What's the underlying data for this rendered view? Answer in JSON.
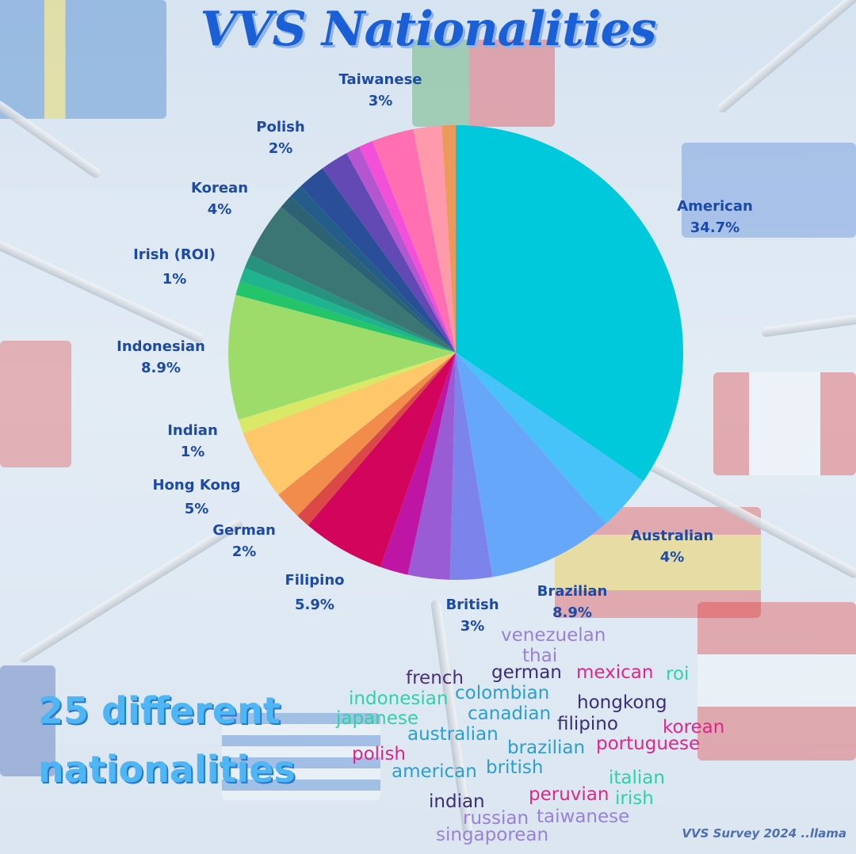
{
  "title": "VVS Nationalities",
  "footer": {
    "count_line1": "25 different",
    "count_line2": "nationalities",
    "credit": "VVS Survey 2024 ..llama"
  },
  "chart_data": {
    "type": "pie",
    "title": "VVS Nationalities",
    "start_angle_deg": 0,
    "direction": "clockwise",
    "slices": [
      {
        "label": "American",
        "pct_text": "34.7%",
        "value": 34.7,
        "color": "#00c9dc"
      },
      {
        "label": "Australian",
        "pct_text": "4%",
        "value": 4.0,
        "color": "#48c3fa"
      },
      {
        "label": "Brazilian",
        "pct_text": "8.9%",
        "value": 8.9,
        "color": "#66a7f9"
      },
      {
        "label": "British",
        "pct_text": "3%",
        "value": 3.0,
        "color": "#7c84ec"
      },
      {
        "label": "",
        "pct_text": "",
        "value": 3.0,
        "color": "#9a5cd4"
      },
      {
        "label": "",
        "pct_text": "",
        "value": 2.0,
        "color": "#be15a5"
      },
      {
        "label": "Filipino",
        "pct_text": "5.9%",
        "value": 5.9,
        "color": "#d2045c"
      },
      {
        "label": "",
        "pct_text": "",
        "value": 1.0,
        "color": "#dc4848"
      },
      {
        "label": "German",
        "pct_text": "2%",
        "value": 2.0,
        "color": "#f28c4c"
      },
      {
        "label": "Hong Kong",
        "pct_text": "5%",
        "value": 5.0,
        "color": "#fec86a"
      },
      {
        "label": "Indian",
        "pct_text": "1%",
        "value": 1.0,
        "color": "#dae868"
      },
      {
        "label": "Indonesian",
        "pct_text": "8.9%",
        "value": 8.9,
        "color": "#9ddc6a"
      },
      {
        "label": "",
        "pct_text": "",
        "value": 1.0,
        "color": "#23c46a"
      },
      {
        "label": "Irish (ROI)",
        "pct_text": "1%",
        "value": 1.0,
        "color": "#1fb48e"
      },
      {
        "label": "",
        "pct_text": "",
        "value": 1.0,
        "color": "#27927e"
      },
      {
        "label": "Korean",
        "pct_text": "4%",
        "value": 4.0,
        "color": "#3c7674"
      },
      {
        "label": "",
        "pct_text": "",
        "value": 1.0,
        "color": "#2c6273"
      },
      {
        "label": "",
        "pct_text": "",
        "value": 1.0,
        "color": "#245c8a"
      },
      {
        "label": "Polish",
        "pct_text": "2%",
        "value": 2.0,
        "color": "#2b4e99"
      },
      {
        "label": "",
        "pct_text": "",
        "value": 2.0,
        "color": "#6349b4"
      },
      {
        "label": "",
        "pct_text": "",
        "value": 1.0,
        "color": "#b456d0"
      },
      {
        "label": "",
        "pct_text": "",
        "value": 1.0,
        "color": "#f250d8"
      },
      {
        "label": "Taiwanese",
        "pct_text": "3%",
        "value": 3.0,
        "color": "#ff6fb2"
      },
      {
        "label": "",
        "pct_text": "",
        "value": 2.0,
        "color": "#ff9aac"
      },
      {
        "label": "",
        "pct_text": "",
        "value": 1.0,
        "color": "#eb9a5c"
      }
    ]
  },
  "word_cloud": [
    {
      "text": "venezuelan",
      "color": "#9a80d8"
    },
    {
      "text": "thai",
      "color": "#9a80d8"
    },
    {
      "text": "french",
      "color": "#4a2f7a"
    },
    {
      "text": "german",
      "color": "#3b2d78"
    },
    {
      "text": "mexican",
      "color": "#e0268a"
    },
    {
      "text": "roi",
      "color": "#2fd2a8"
    },
    {
      "text": "indonesian",
      "color": "#2fd2a8"
    },
    {
      "text": "colombian",
      "color": "#2a9fd0"
    },
    {
      "text": "hongkong",
      "color": "#3b2d78"
    },
    {
      "text": "japanese",
      "color": "#2fd2a8"
    },
    {
      "text": "canadian",
      "color": "#2a9fd0"
    },
    {
      "text": "filipino",
      "color": "#3b2d78"
    },
    {
      "text": "korean",
      "color": "#e0268a"
    },
    {
      "text": "australian",
      "color": "#2a9fd0"
    },
    {
      "text": "brazilian",
      "color": "#2a9fd0"
    },
    {
      "text": "portuguese",
      "color": "#e0268a"
    },
    {
      "text": "polish",
      "color": "#e0268a"
    },
    {
      "text": "american",
      "color": "#2a9fd0"
    },
    {
      "text": "british",
      "color": "#2a9fd0"
    },
    {
      "text": "italian",
      "color": "#2fd2a8"
    },
    {
      "text": "peruvian",
      "color": "#e0268a"
    },
    {
      "text": "irish",
      "color": "#2fd2a8"
    },
    {
      "text": "indian",
      "color": "#3b2d78"
    },
    {
      "text": "russian",
      "color": "#9a80d8"
    },
    {
      "text": "taiwanese",
      "color": "#9a80d8"
    },
    {
      "text": "singaporean",
      "color": "#9a80d8"
    }
  ]
}
